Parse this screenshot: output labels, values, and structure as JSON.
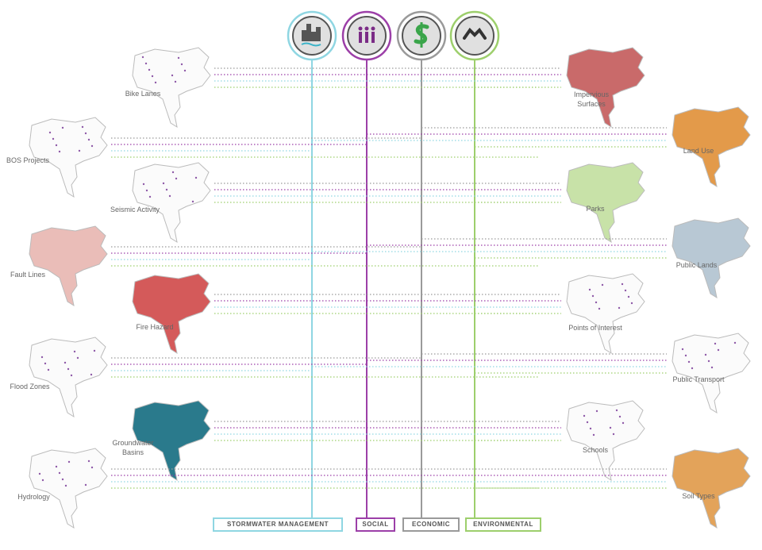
{
  "categories": [
    {
      "label": "STORMWATER MANAGEMENT"
    },
    {
      "label": "SOCIAL"
    },
    {
      "label": "ECONOMIC"
    },
    {
      "label": "ENVIRONMENTAL"
    }
  ],
  "left_maps": [
    {
      "label": "Bike Lanes"
    },
    {
      "label": "BOS Projects"
    },
    {
      "label": "Seismic Activity"
    },
    {
      "label": "Fault Lines"
    },
    {
      "label": "Fire Hazard"
    },
    {
      "label": "Flood Zones"
    },
    {
      "label": "Groundwater Basins"
    },
    {
      "label": "Hydrology"
    }
  ],
  "right_maps": [
    {
      "label": "Impervious Surfaces"
    },
    {
      "label": "Land Use"
    },
    {
      "label": "Parks"
    },
    {
      "label": "Public Lands"
    },
    {
      "label": "Points of Interest"
    },
    {
      "label": "Public Transport"
    },
    {
      "label": "Schools"
    },
    {
      "label": "Soil Types"
    }
  ]
}
